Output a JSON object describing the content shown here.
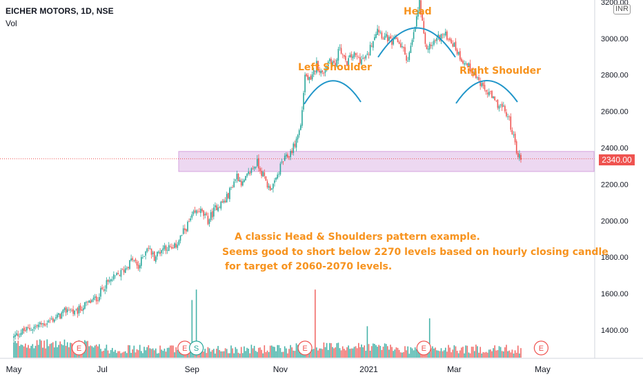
{
  "header": {
    "title": "EICHER MOTORS, 1D, NSE",
    "volume_label": "Vol"
  },
  "currency_badge": "INR",
  "current_price_label": "2340.00",
  "annotations": {
    "head": "Head",
    "left_shoulder": "Left Shoulder",
    "right_shoulder": "Right Shoulder",
    "note_line1": "A classic Head & Shoulders pattern example.",
    "note_line2": "Seems good to short below 2270 levels based on hourly closing candle",
    "note_line3": "for target of 2060-2070 levels."
  },
  "colors": {
    "up": "#26a69a",
    "down": "#ef5350",
    "annotation": "#f7931e",
    "arc": "#2196c9",
    "zone_fill": "#e1bee7",
    "zone_border": "#d6a3df",
    "earnings_badge": "#ef5350",
    "split_badge": "#26a69a"
  },
  "chart_data": {
    "type": "candlestick",
    "title": "EICHER MOTORS, 1D, NSE",
    "ylim": [
      1250,
      3230
    ],
    "y_ticks": [
      "1400.00",
      "1600.00",
      "1800.00",
      "2000.00",
      "2200.00",
      "2400.00",
      "2600.00",
      "2800.00",
      "3000.00",
      "3200.00"
    ],
    "y_tick_values": [
      1400,
      1600,
      1800,
      2000,
      2200,
      2400,
      2600,
      2800,
      3000,
      3200
    ],
    "x_labels": [
      "May",
      "Jul",
      "Sep",
      "Nov",
      "2021",
      "Mar",
      "May"
    ],
    "x_label_index": [
      0,
      61,
      123,
      184,
      245,
      304,
      365
    ],
    "bar_count": 350,
    "current_price": 2340,
    "support_zone": [
      2270,
      2380
    ],
    "anchors": [
      [
        0,
        1360
      ],
      [
        5,
        1390
      ],
      [
        12,
        1410
      ],
      [
        22,
        1440
      ],
      [
        32,
        1480
      ],
      [
        38,
        1520
      ],
      [
        42,
        1490
      ],
      [
        48,
        1530
      ],
      [
        58,
        1580
      ],
      [
        62,
        1640
      ],
      [
        70,
        1690
      ],
      [
        75,
        1720
      ],
      [
        82,
        1790
      ],
      [
        86,
        1740
      ],
      [
        92,
        1860
      ],
      [
        97,
        1800
      ],
      [
        104,
        1860
      ],
      [
        110,
        1840
      ],
      [
        118,
        1950
      ],
      [
        124,
        2030
      ],
      [
        128,
        2060
      ],
      [
        134,
        2000
      ],
      [
        140,
        2080
      ],
      [
        146,
        2110
      ],
      [
        150,
        2180
      ],
      [
        154,
        2250
      ],
      [
        158,
        2200
      ],
      [
        164,
        2280
      ],
      [
        168,
        2320
      ],
      [
        172,
        2250
      ],
      [
        176,
        2180
      ],
      [
        180,
        2200
      ],
      [
        185,
        2320
      ],
      [
        190,
        2360
      ],
      [
        194,
        2420
      ],
      [
        198,
        2520
      ],
      [
        201,
        2800
      ],
      [
        205,
        2760
      ],
      [
        209,
        2860
      ],
      [
        213,
        2800
      ],
      [
        218,
        2890
      ],
      [
        222,
        2850
      ],
      [
        225,
        2960
      ],
      [
        229,
        2860
      ],
      [
        234,
        2910
      ],
      [
        240,
        2880
      ],
      [
        244,
        2900
      ],
      [
        248,
        3000
      ],
      [
        251,
        3060
      ],
      [
        255,
        3010
      ],
      [
        258,
        3000
      ],
      [
        261,
        2970
      ],
      [
        264,
        3000
      ],
      [
        268,
        2950
      ],
      [
        272,
        2880
      ],
      [
        276,
        3020
      ],
      [
        280,
        3200
      ],
      [
        284,
        2950
      ],
      [
        288,
        2960
      ],
      [
        292,
        3000
      ],
      [
        296,
        3020
      ],
      [
        300,
        3010
      ],
      [
        304,
        2960
      ],
      [
        308,
        2900
      ],
      [
        312,
        2860
      ],
      [
        316,
        2830
      ],
      [
        320,
        2780
      ],
      [
        324,
        2720
      ],
      [
        328,
        2700
      ],
      [
        332,
        2650
      ],
      [
        336,
        2630
      ],
      [
        339,
        2600
      ],
      [
        342,
        2550
      ],
      [
        344,
        2490
      ],
      [
        346,
        2420
      ],
      [
        348,
        2360
      ],
      [
        350,
        2340
      ]
    ],
    "volume_spikes": [
      [
        123,
        2.2
      ],
      [
        126,
        2.6
      ],
      [
        208,
        2.6
      ],
      [
        244,
        1.2
      ],
      [
        287,
        1.5
      ]
    ],
    "events": [
      {
        "label": "E",
        "index": 45,
        "color": "earnings"
      },
      {
        "label": "E",
        "index": 118,
        "color": "earnings"
      },
      {
        "label": "S",
        "index": 126,
        "color": "split"
      },
      {
        "label": "E",
        "index": 201,
        "color": "earnings"
      },
      {
        "label": "E",
        "index": 283,
        "color": "earnings"
      },
      {
        "label": "E",
        "index": 364,
        "color": "earnings"
      }
    ],
    "pattern_labels": [
      "Left Shoulder",
      "Head",
      "Right Shoulder"
    ]
  }
}
